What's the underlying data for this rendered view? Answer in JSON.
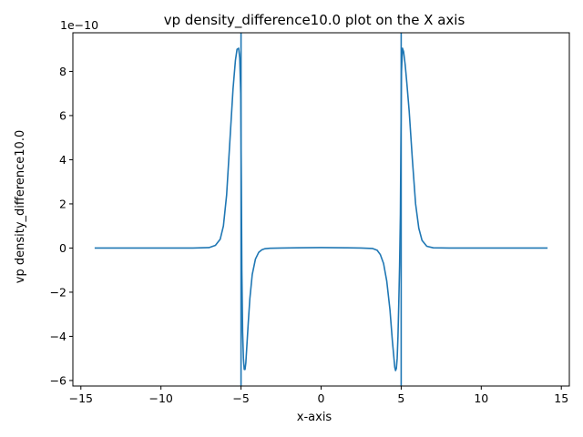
{
  "chart_data": {
    "type": "line",
    "title": "vp density_difference10.0 plot on the X axis",
    "xlabel": "x-axis",
    "ylabel": "vp density_difference10.0",
    "y_scale_label": "1e−10",
    "y_scale": 1e-10,
    "xlim": [
      -15.5,
      15.5
    ],
    "ylim": [
      -6.25,
      9.75
    ],
    "xticks": [
      -15,
      -10,
      -5,
      0,
      5,
      10,
      15
    ],
    "xtick_labels": [
      "−15",
      "−10",
      "−5",
      "0",
      "5",
      "10",
      "15"
    ],
    "yticks": [
      -6,
      -4,
      -2,
      0,
      2,
      4,
      6,
      8
    ],
    "ytick_labels": [
      "−6",
      "−4",
      "−2",
      "0",
      "2",
      "4",
      "6",
      "8"
    ],
    "grid": false,
    "legend": "none",
    "vertical_lines_x": [
      -5.0,
      5.0
    ],
    "series": [
      {
        "color": "#1f77b4",
        "x": [
          -14.14,
          -10.0,
          -8.0,
          -7.0,
          -6.6,
          -6.3,
          -6.1,
          -5.9,
          -5.7,
          -5.5,
          -5.35,
          -5.25,
          -5.15,
          -5.08,
          -5.02,
          -4.98,
          -4.95,
          -4.9,
          -4.85,
          -4.8,
          -4.75,
          -4.7,
          -4.65,
          -4.6,
          -4.55,
          -4.45,
          -4.3,
          -4.1,
          -3.9,
          -3.7,
          -3.5,
          -3.2,
          -2.5,
          -1.5,
          0.0,
          1.5,
          2.5,
          3.2,
          3.5,
          3.7,
          3.9,
          4.1,
          4.3,
          4.45,
          4.55,
          4.6,
          4.65,
          4.7,
          4.75,
          4.8,
          4.85,
          4.9,
          4.95,
          4.98,
          5.02,
          5.08,
          5.15,
          5.25,
          5.35,
          5.5,
          5.7,
          5.9,
          6.1,
          6.3,
          6.6,
          7.0,
          8.0,
          10.0,
          14.14
        ],
        "values": [
          0,
          0,
          0,
          0.02,
          0.12,
          0.4,
          1.0,
          2.4,
          4.8,
          7.2,
          8.5,
          9.0,
          9.05,
          8.6,
          7.0,
          3.0,
          -1.0,
          -3.8,
          -5.0,
          -5.5,
          -5.5,
          -5.2,
          -4.6,
          -4.0,
          -3.4,
          -2.3,
          -1.2,
          -0.5,
          -0.2,
          -0.08,
          -0.03,
          -0.01,
          0,
          0.01,
          0.02,
          0.01,
          0,
          -0.02,
          -0.1,
          -0.3,
          -0.7,
          -1.5,
          -2.8,
          -4.2,
          -5.0,
          -5.4,
          -5.55,
          -5.45,
          -5.0,
          -4.0,
          -2.5,
          -0.8,
          1.5,
          4.5,
          8.0,
          9.05,
          8.9,
          8.3,
          7.5,
          6.2,
          4.0,
          2.0,
          0.9,
          0.35,
          0.08,
          0.01,
          0,
          0,
          0
        ]
      }
    ]
  }
}
